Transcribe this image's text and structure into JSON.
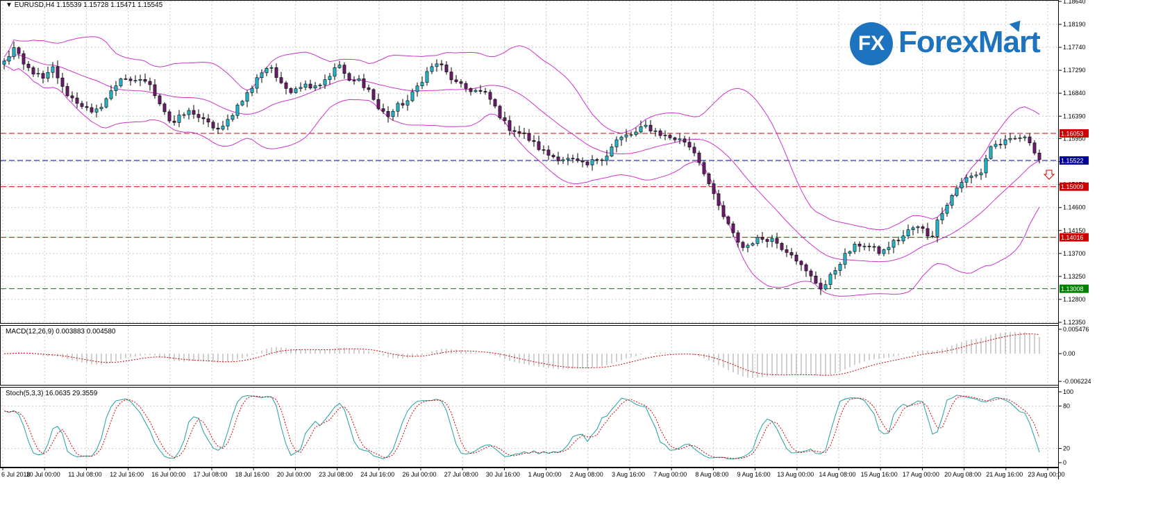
{
  "symbol": "EURUSD",
  "timeframe": "H4",
  "main_title": "EURUSD,H4  1.15539 1.15728 1.15471 1.15545",
  "macd_title": "MACD(12,26,9) 0.003883 0.004580",
  "stoch_title": "Stoch(5,3,3) 16.0635 29.3559",
  "brand": {
    "mark": "FX",
    "name": "ForexMart",
    "color": "#1e73be"
  },
  "colors": {
    "bullish": "#26b5c8",
    "bearish": "#6a1b6a",
    "bollinger": "#cc33cc",
    "macd_signal": "#cc0000",
    "stoch_main": "#20a0a0",
    "stoch_signal": "#cc0000",
    "level_red": "#cc0000",
    "level_blue": "#000099",
    "level_green": "#008000"
  },
  "price_axis": {
    "ticks": [
      "1.18640",
      "1.18190",
      "1.17740",
      "1.17290",
      "1.16840",
      "1.16390",
      "1.15950",
      "1.15500",
      "1.15050",
      "1.14600",
      "1.14150",
      "1.13700",
      "1.13250",
      "1.12800",
      "1.12350"
    ],
    "min": 1.1235,
    "max": 1.1864
  },
  "levels": [
    {
      "label": "1.16053",
      "value": 1.16053,
      "color": "#cc0000"
    },
    {
      "label": "1.15522",
      "value": 1.15522,
      "color": "#000099"
    },
    {
      "label": "1.15009",
      "value": 1.15009,
      "color": "#cc0000"
    },
    {
      "label": "1.14016",
      "value": 1.14016,
      "color": "#cc0000"
    },
    {
      "label": "1.13008",
      "value": 1.13008,
      "color": "#008000"
    }
  ],
  "macd_axis": {
    "ticks": [
      "0.005476",
      "0.00",
      "-0.006224"
    ],
    "min": -0.006224,
    "max": 0.005476
  },
  "stoch_axis": {
    "ticks": [
      "100",
      "80",
      "20",
      "0"
    ]
  },
  "time_axis": [
    "6 Jul 2018",
    "10 Jul 00:00",
    "11 Jul 08:00",
    "12 Jul 16:00",
    "16 Jul 00:00",
    "17 Jul 08:00",
    "18 Jul 16:00",
    "20 Jul 00:00",
    "23 Jul 08:00",
    "24 Jul 16:00",
    "26 Jul 00:00",
    "27 Jul 08:00",
    "30 Jul 16:00",
    "1 Aug 00:00",
    "2 Aug 08:00",
    "3 Aug 16:00",
    "7 Aug 00:00",
    "8 Aug 08:00",
    "9 Aug 16:00",
    "13 Aug 00:00",
    "14 Aug 08:00",
    "15 Aug 16:00",
    "17 Aug 00:00",
    "20 Aug 08:00",
    "21 Aug 16:00",
    "23 Aug 00:00"
  ],
  "chart_data": {
    "type": "candlestick",
    "price_anchors": [
      1.1745,
      1.1772,
      1.1738,
      1.1725,
      1.171,
      1.1735,
      1.169,
      1.1672,
      1.166,
      1.164,
      1.1665,
      1.169,
      1.172,
      1.17,
      1.1715,
      1.1692,
      1.166,
      1.1622,
      1.164,
      1.165,
      1.1632,
      1.162,
      1.161,
      1.164,
      1.167,
      1.169,
      1.1725,
      1.174,
      1.17,
      1.169,
      1.17,
      1.17,
      1.1702,
      1.172,
      1.174,
      1.1705,
      1.171,
      1.169,
      1.1652,
      1.164,
      1.166,
      1.167,
      1.17,
      1.1728,
      1.1745,
      1.172,
      1.17,
      1.1692,
      1.1688,
      1.168,
      1.165,
      1.1618,
      1.161,
      1.1598,
      1.158,
      1.1565,
      1.1558,
      1.1555,
      1.155,
      1.154,
      1.1555,
      1.156,
      1.159,
      1.16,
      1.1605,
      1.162,
      1.161,
      1.16,
      1.1595,
      1.159,
      1.157,
      1.153,
      1.148,
      1.144,
      1.1405,
      1.138,
      1.1395,
      1.14,
      1.1398,
      1.138,
      1.137,
      1.134,
      1.132,
      1.13,
      1.133,
      1.136,
      1.138,
      1.139,
      1.138,
      1.137,
      1.139,
      1.14,
      1.142,
      1.142,
      1.14,
      1.145,
      1.148,
      1.151,
      1.152,
      1.1525,
      1.158,
      1.1585,
      1.159,
      1.1598,
      1.159,
      1.1555
    ],
    "bollinger": {
      "period": 20
    },
    "macd": {
      "fast": 12,
      "slow": 26,
      "signal": 9,
      "main": 0.003883,
      "signal_value": 0.00458
    },
    "stochastic": {
      "k": 5,
      "d": 3,
      "slowing": 3,
      "main": 16.0635,
      "signal": 29.3559
    }
  }
}
